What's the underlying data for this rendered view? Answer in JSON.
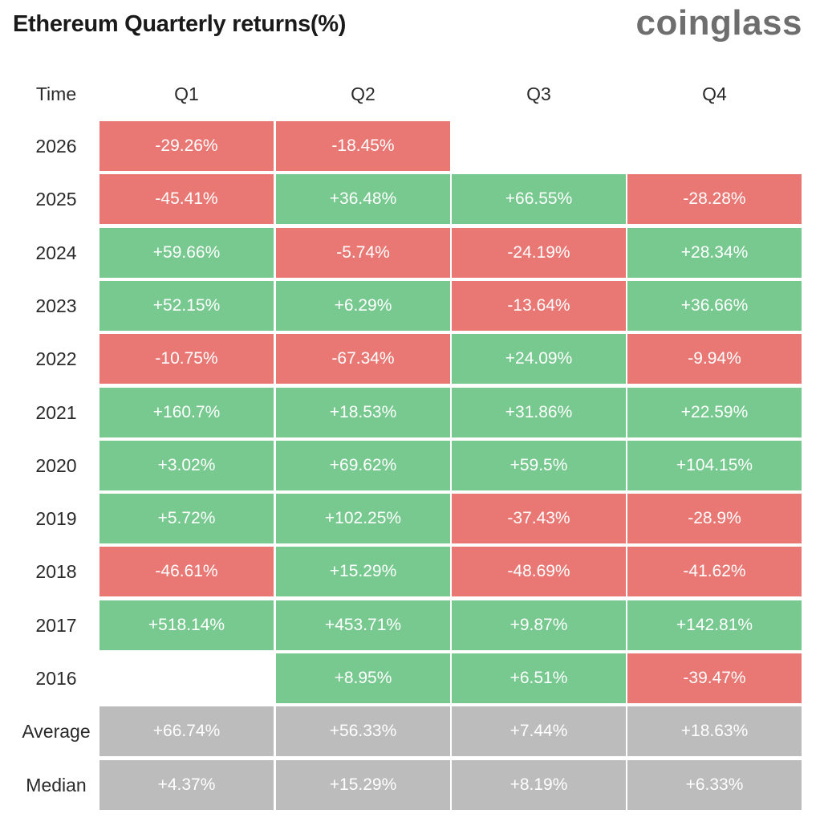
{
  "title": "Ethereum Quarterly returns(%)",
  "logo": "coinglass",
  "colors": {
    "positive": "#77c98f",
    "negative": "#e97874",
    "summary": "#bcbcbc"
  },
  "chart_data": {
    "type": "table",
    "corner_label": "Time",
    "columns": [
      "Q1",
      "Q2",
      "Q3",
      "Q4"
    ],
    "rows": [
      {
        "label": "2026",
        "kind": "year",
        "values": [
          "-29.26%",
          "-18.45%",
          null,
          null
        ]
      },
      {
        "label": "2025",
        "kind": "year",
        "values": [
          "-45.41%",
          "+36.48%",
          "+66.55%",
          "-28.28%"
        ]
      },
      {
        "label": "2024",
        "kind": "year",
        "values": [
          "+59.66%",
          "-5.74%",
          "-24.19%",
          "+28.34%"
        ]
      },
      {
        "label": "2023",
        "kind": "year",
        "values": [
          "+52.15%",
          "+6.29%",
          "-13.64%",
          "+36.66%"
        ]
      },
      {
        "label": "2022",
        "kind": "year",
        "values": [
          "-10.75%",
          "-67.34%",
          "+24.09%",
          "-9.94%"
        ]
      },
      {
        "label": "2021",
        "kind": "year",
        "values": [
          "+160.7%",
          "+18.53%",
          "+31.86%",
          "+22.59%"
        ]
      },
      {
        "label": "2020",
        "kind": "year",
        "values": [
          "+3.02%",
          "+69.62%",
          "+59.5%",
          "+104.15%"
        ]
      },
      {
        "label": "2019",
        "kind": "year",
        "values": [
          "+5.72%",
          "+102.25%",
          "-37.43%",
          "-28.9%"
        ]
      },
      {
        "label": "2018",
        "kind": "year",
        "values": [
          "-46.61%",
          "+15.29%",
          "-48.69%",
          "-41.62%"
        ]
      },
      {
        "label": "2017",
        "kind": "year",
        "values": [
          "+518.14%",
          "+453.71%",
          "+9.87%",
          "+142.81%"
        ]
      },
      {
        "label": "2016",
        "kind": "year",
        "values": [
          null,
          "+8.95%",
          "+6.51%",
          "-39.47%"
        ]
      },
      {
        "label": "Average",
        "kind": "summary",
        "values": [
          "+66.74%",
          "+56.33%",
          "+7.44%",
          "+18.63%"
        ]
      },
      {
        "label": "Median",
        "kind": "summary",
        "values": [
          "+4.37%",
          "+15.29%",
          "+8.19%",
          "+6.33%"
        ]
      }
    ]
  }
}
